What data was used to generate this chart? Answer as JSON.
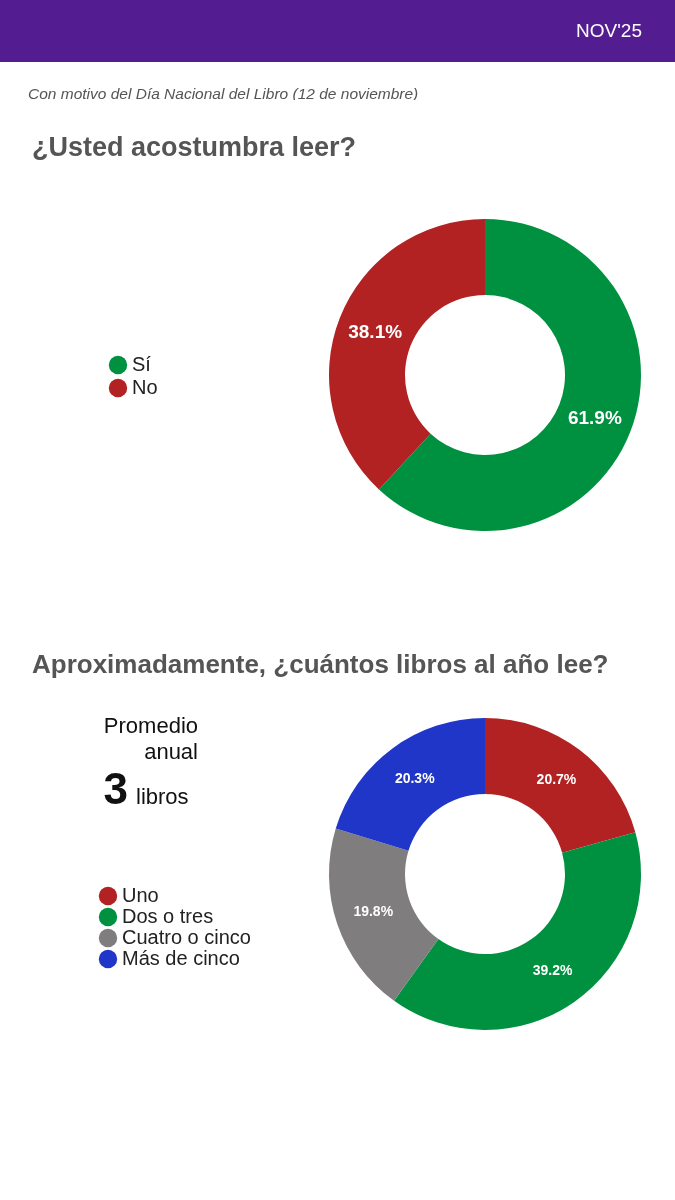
{
  "chart_data": [
    {
      "type": "donut",
      "title": "¿Usted acostumbra leer?",
      "annotations": [
        "NOV'25",
        "Con motivo del Día Nacional del Libro (12 de noviembre)"
      ],
      "categories": [
        "Sí",
        "No"
      ],
      "values": [
        61.9,
        38.1
      ],
      "colors": [
        "#009140",
        "#b22222"
      ],
      "value_labels": [
        "61.9%",
        "38.1%"
      ],
      "legend": "left"
    },
    {
      "type": "donut",
      "title": "Aproximadamente, ¿cuántos libros al año lee?",
      "annotations": [
        "Promedio anual",
        "3 libros"
      ],
      "categories": [
        "Uno",
        "Dos o tres",
        "Cuatro o cinco",
        "Más de cinco"
      ],
      "values": [
        20.7,
        39.2,
        19.8,
        20.3
      ],
      "colors": [
        "#b22222",
        "#009140",
        "#7f7d7e",
        "#2036c8"
      ],
      "value_labels": [
        "20.7%",
        "39.2%",
        "19.8%",
        "20.3%"
      ],
      "legend": "left"
    }
  ]
}
